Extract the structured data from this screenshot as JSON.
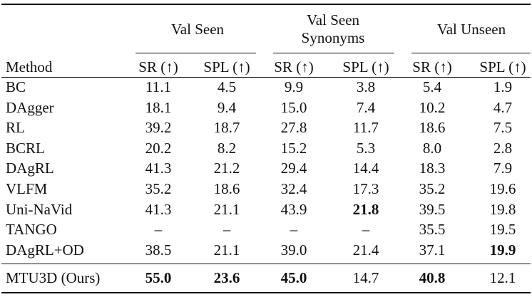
{
  "table": {
    "groups": [
      {
        "label": "Val Seen"
      },
      {
        "label": "Val Seen Synonyms"
      },
      {
        "label": "Val Unseen"
      }
    ],
    "method_header": "Method",
    "metric_headers": [
      "SR (↑)",
      "SPL (↑)",
      "SR (↑)",
      "SPL (↑)",
      "SR (↑)",
      "SPL (↑)"
    ],
    "rows": [
      {
        "method": "BC",
        "values": [
          "11.1",
          "4.5",
          "9.9",
          "3.8",
          "5.4",
          "1.9"
        ],
        "bold": []
      },
      {
        "method": "DAgger",
        "values": [
          "18.1",
          "9.4",
          "15.0",
          "7.4",
          "10.2",
          "4.7"
        ],
        "bold": []
      },
      {
        "method": "RL",
        "values": [
          "39.2",
          "18.7",
          "27.8",
          "11.7",
          "18.6",
          "7.5"
        ],
        "bold": []
      },
      {
        "method": "BCRL",
        "values": [
          "20.2",
          "8.2",
          "15.2",
          "5.3",
          "8.0",
          "2.8"
        ],
        "bold": []
      },
      {
        "method": "DAgRL",
        "values": [
          "41.3",
          "21.2",
          "29.4",
          "14.4",
          "18.3",
          "7.9"
        ],
        "bold": []
      },
      {
        "method": "VLFM",
        "values": [
          "35.2",
          "18.6",
          "32.4",
          "17.3",
          "35.2",
          "19.6"
        ],
        "bold": []
      },
      {
        "method": "Uni-NaVid",
        "values": [
          "41.3",
          "21.1",
          "43.9",
          "21.8",
          "39.5",
          "19.8"
        ],
        "bold": [
          3
        ]
      },
      {
        "method": "TANGO",
        "values": [
          "–",
          "–",
          "–",
          "–",
          "35.5",
          "19.5"
        ],
        "bold": []
      },
      {
        "method": "DAgRL+OD",
        "values": [
          "38.5",
          "21.1",
          "39.0",
          "21.4",
          "37.1",
          "19.9"
        ],
        "bold": [
          5
        ]
      }
    ],
    "final_row": {
      "method": "MTU3D (Ours)",
      "values": [
        "55.0",
        "23.6",
        "45.0",
        "14.7",
        "40.8",
        "12.1"
      ],
      "bold": [
        0,
        1,
        2,
        4
      ]
    }
  }
}
